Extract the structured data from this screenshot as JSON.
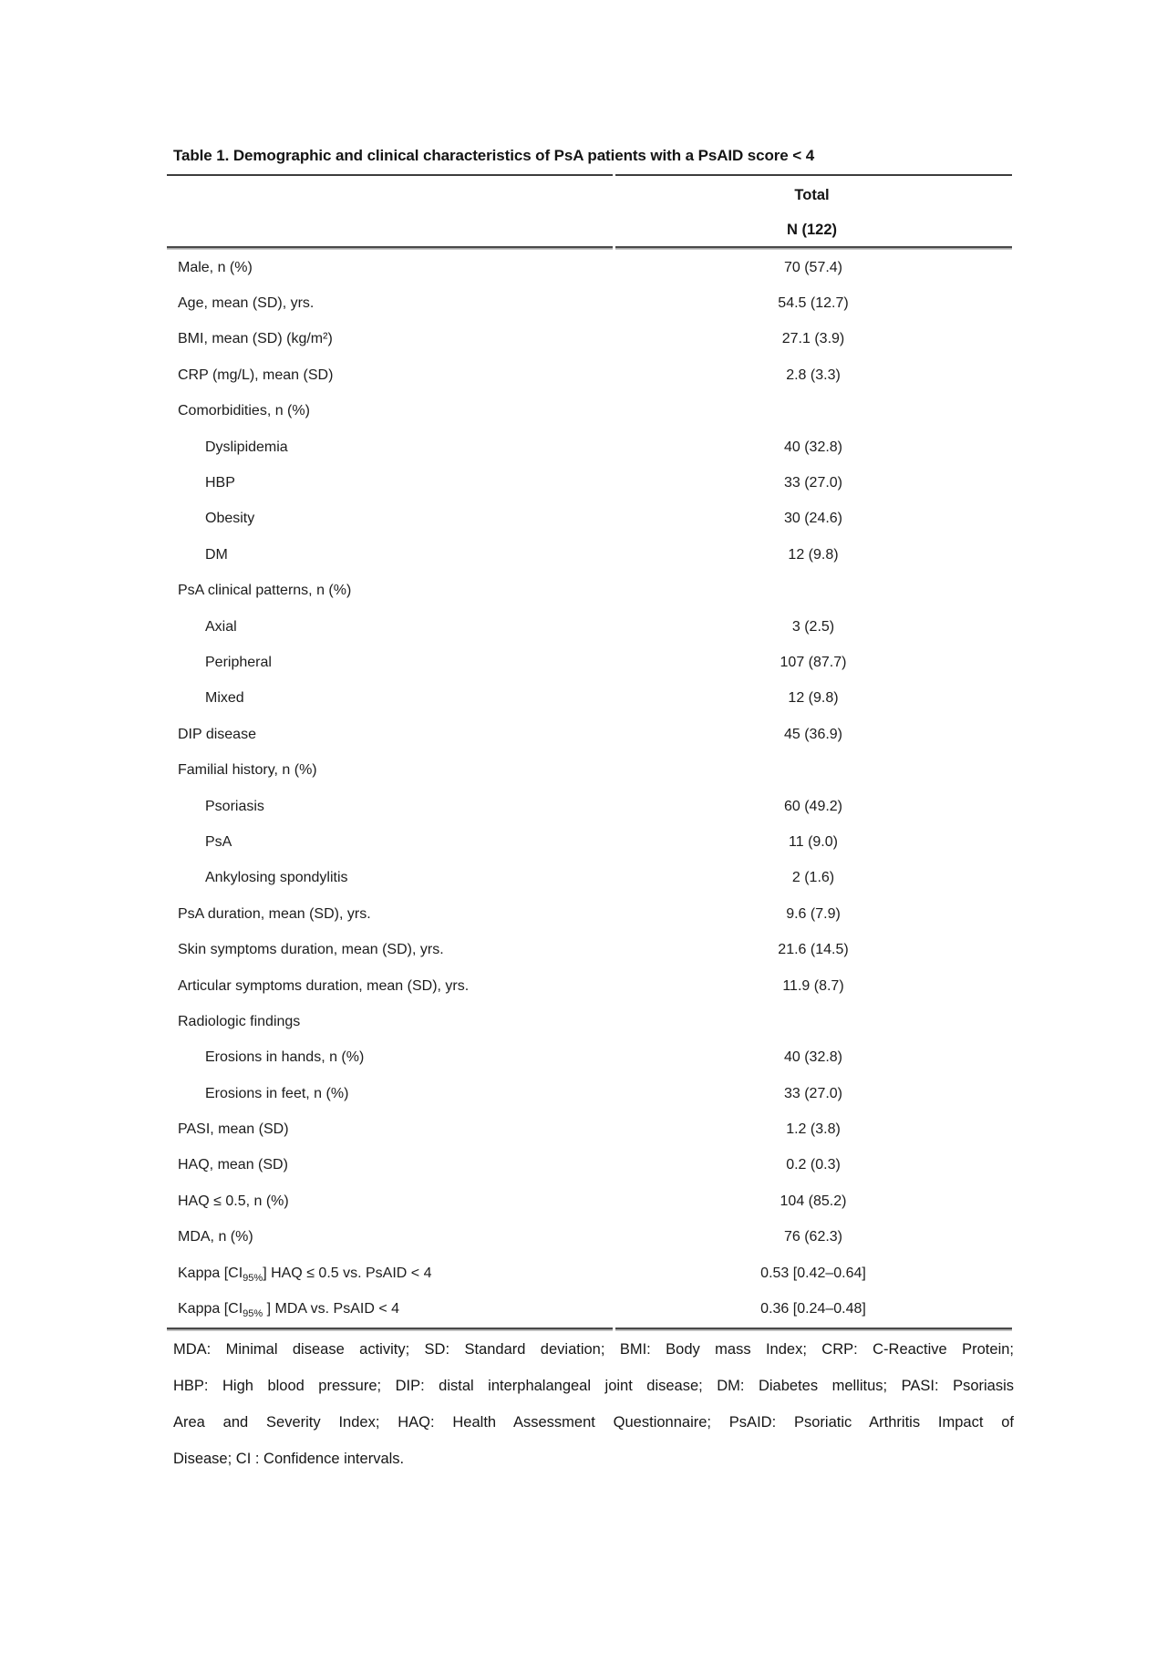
{
  "page": {
    "title": "Table 1. Demographic and clinical characteristics of PsA patients with a PsAID score < 4"
  },
  "table": {
    "header": {
      "line1": "Total",
      "line2": "N (122)"
    },
    "rows": [
      {
        "label": "Male, n (%)",
        "value": "70 (57.4)",
        "indent": false
      },
      {
        "label": "Age, mean (SD), yrs.",
        "value": "54.5 (12.7)",
        "indent": false
      },
      {
        "label": "BMI, mean (SD) (kg/m²)",
        "value": "27.1 (3.9)",
        "indent": false
      },
      {
        "label": "CRP (mg/L), mean (SD)",
        "value": "2.8 (3.3)",
        "indent": false
      },
      {
        "label": "Comorbidities, n (%)",
        "value": "",
        "indent": false
      },
      {
        "label": "Dyslipidemia",
        "value": "40 (32.8)",
        "indent": true
      },
      {
        "label": "HBP",
        "value": "33 (27.0)",
        "indent": true
      },
      {
        "label": "Obesity",
        "value": "30 (24.6)",
        "indent": true
      },
      {
        "label": "DM",
        "value": "12 (9.8)",
        "indent": true
      },
      {
        "label": "PsA clinical patterns, n (%)",
        "value": "",
        "indent": false
      },
      {
        "label": "Axial",
        "value": "3 (2.5)",
        "indent": true
      },
      {
        "label": "Peripheral",
        "value": "107 (87.7)",
        "indent": true
      },
      {
        "label": "Mixed",
        "value": "12 (9.8)",
        "indent": true
      },
      {
        "label": "DIP disease",
        "value": "45 (36.9)",
        "indent": false
      },
      {
        "label": "Familial history, n (%)",
        "value": "",
        "indent": false
      },
      {
        "label": "Psoriasis",
        "value": "60 (49.2)",
        "indent": true
      },
      {
        "label": "PsA",
        "value": "11 (9.0)",
        "indent": true
      },
      {
        "label": "Ankylosing spondylitis",
        "value": "2 (1.6)",
        "indent": true
      },
      {
        "label": "PsA duration, mean (SD), yrs.",
        "value": "9.6 (7.9)",
        "indent": false
      },
      {
        "label": "Skin symptoms duration, mean (SD), yrs.",
        "value": "21.6 (14.5)",
        "indent": false
      },
      {
        "label": "Articular symptoms duration, mean (SD), yrs.",
        "value": "11.9 (8.7)",
        "indent": false
      },
      {
        "label": "Radiologic findings",
        "value": "",
        "indent": false
      },
      {
        "label": "Erosions in hands, n (%)",
        "value": "40 (32.8)",
        "indent": true
      },
      {
        "label": "Erosions in feet, n (%)",
        "value": "33 (27.0)",
        "indent": true
      },
      {
        "label": "PASI, mean (SD)",
        "value": "1.2 (3.8)",
        "indent": false
      },
      {
        "label": "HAQ, mean (SD)",
        "value": "0.2 (0.3)",
        "indent": false
      },
      {
        "label": "HAQ ≤ 0.5, n (%)",
        "value": "104 (85.2)",
        "indent": false
      },
      {
        "label": "MDA, n (%)",
        "value": "76 (62.3)",
        "indent": false
      },
      {
        "label_pre": "Kappa [CI",
        "label_sub": "95%",
        "label_post": "] HAQ ≤ 0.5 vs. PsAID < 4",
        "value": "0.53 [0.42–0.64]",
        "indent": false
      },
      {
        "label_pre": "Kappa [CI",
        "label_sub": "95%",
        "label_post": " ] MDA vs. PsAID < 4",
        "value": "0.36 [0.24–0.48]",
        "indent": false
      }
    ]
  },
  "footnote": {
    "lines": [
      "MDA: Minimal disease activity; SD: Standard deviation; BMI: Body mass Index; CRP: C-Reactive Protein;",
      "HBP: High blood pressure; DIP: distal interphalangeal joint disease; DM: Diabetes mellitus; PASI: Psoriasis",
      "Area and Severity Index; HAQ: Health Assessment Questionnaire; PsAID: Psoriatic Arthritis Impact of",
      "Disease; CI : Confidence intervals."
    ]
  }
}
